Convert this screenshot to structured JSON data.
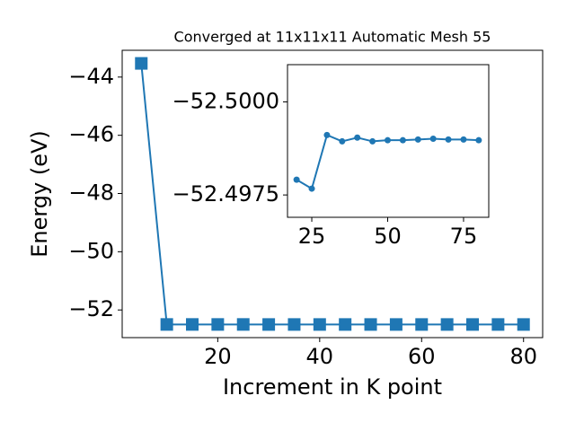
{
  "chart_data": [
    {
      "type": "line",
      "title": "Converged at 11x11x11 Automatic Mesh 55",
      "xlabel": "Increment in K point",
      "ylabel": "Energy (eV)",
      "marker": "square",
      "x": [
        5,
        10,
        15,
        20,
        25,
        30,
        35,
        40,
        45,
        50,
        55,
        60,
        65,
        70,
        75,
        80
      ],
      "series": [
        {
          "color": "#1f77b4",
          "values": [
            -43.53,
            -52.4979,
            -52.4977,
            -52.4979,
            -52.4977,
            -52.4991,
            -52.4989,
            -52.499,
            -52.4989,
            -52.499,
            -52.499,
            -52.499,
            -52.499,
            -52.499,
            -52.499,
            -52.499
          ]
        }
      ],
      "xlim": [
        1.25,
        83.75
      ],
      "ylim": [
        -52.95,
        -43.08
      ],
      "xticks": [
        20,
        40,
        60,
        80
      ],
      "yticks": [
        {
          "value": -52,
          "label": "−52"
        },
        {
          "value": -50,
          "label": "−50"
        },
        {
          "value": -48,
          "label": "−48"
        },
        {
          "value": -46,
          "label": "−46"
        },
        {
          "value": -44,
          "label": "−44"
        }
      ]
    },
    {
      "type": "line",
      "marker": "circle",
      "x": [
        20,
        25,
        30,
        35,
        40,
        45,
        50,
        55,
        60,
        65,
        70,
        75,
        80
      ],
      "series": [
        {
          "color": "#1f77b4",
          "values": [
            -52.49791,
            -52.49767,
            -52.49911,
            -52.49894,
            -52.49904,
            -52.49894,
            -52.49897,
            -52.49897,
            -52.49899,
            -52.49901,
            -52.49899,
            -52.49899,
            -52.49897
          ]
        }
      ],
      "xlim": [
        17,
        83.3
      ],
      "ylim": [
        -52.4969,
        -52.501
      ],
      "xticks": [
        25,
        50,
        75
      ],
      "yticks": [
        {
          "value": -52.4975,
          "label": "−52.4975"
        },
        {
          "value": -52.5,
          "label": "−52.5000"
        }
      ]
    }
  ]
}
